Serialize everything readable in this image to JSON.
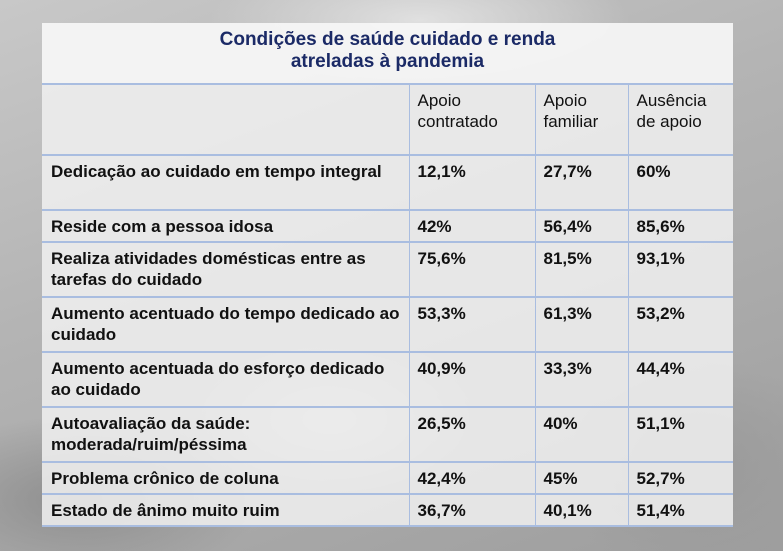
{
  "title_line1": "Condições de saúde cuidado e renda",
  "title_line2": "atreladas à pandemia",
  "columns": [
    {
      "l1": "Apoio",
      "l2": "contratado"
    },
    {
      "l1": "Apoio",
      "l2": "familiar"
    },
    {
      "l1": "Ausência",
      "l2": "de apoio"
    }
  ],
  "rows": [
    {
      "label": "Dedicação ao cuidado em tempo integral",
      "values": [
        "12,1%",
        "27,7%",
        "60%"
      ]
    },
    {
      "label": "Reside com a pessoa idosa",
      "values": [
        "42%",
        "56,4%",
        "85,6%"
      ]
    },
    {
      "label": "Realiza atividades domésticas entre as tarefas do cuidado",
      "values": [
        "75,6%",
        "81,5%",
        "93,1%"
      ]
    },
    {
      "label": "Aumento acentuado do tempo dedicado ao cuidado",
      "values": [
        "53,3%",
        "61,3%",
        "53,2%"
      ]
    },
    {
      "label": "Aumento acentuada do esforço dedicado ao cuidado",
      "values": [
        "40,9%",
        "33,3%",
        "44,4%"
      ]
    },
    {
      "label": "Autoavaliação da saúde: moderada/ruim/péssima",
      "values": [
        "26,5%",
        "40%",
        "51,1%"
      ]
    },
    {
      "label": "Problema crônico de coluna",
      "values": [
        "42,4%",
        "45%",
        "52,7%"
      ]
    },
    {
      "label": "Estado de ânimo muito ruim",
      "values": [
        "36,7%",
        "40,1%",
        "51,4%"
      ]
    }
  ]
}
